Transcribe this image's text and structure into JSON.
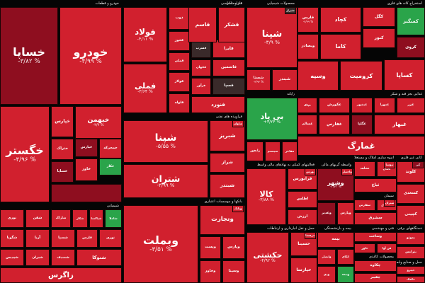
{
  "chart_data": {
    "type": "treemap",
    "title": "",
    "colors": {
      "dark_red": "#8e0e1f",
      "red": "#d1202e",
      "bright_red": "#e0232f",
      "green": "#2aa44a",
      "dark_green": "#1f7a3a",
      "dark": "#3a2a2a",
      "grey": "#505050"
    },
    "sectors": [
      {
        "name": "خودرو و قطعات",
        "tiles": [
          {
            "symbol": "خساپا",
            "change": "-۳/۸۲ %",
            "color": "dark_red"
          },
          {
            "symbol": "خودرو",
            "change": "-۴/۹۹ %",
            "color": "red"
          },
          {
            "symbol": "خگستر",
            "change": "-۴/۹۶ %",
            "color": "red"
          },
          {
            "symbol": "خبهمن",
            "change": "-۴/۹ %",
            "color": "red"
          },
          {
            "symbol": "خپارس",
            "change": "",
            "color": "red"
          },
          {
            "symbol": "خپارس",
            "change": "",
            "color": "dark_red"
          },
          {
            "symbol": "خمحرکه",
            "change": "",
            "color": "red"
          },
          {
            "symbol": "ختراک",
            "change": "",
            "color": "red"
          },
          {
            "symbol": "خکار",
            "change": "",
            "color": "green"
          },
          {
            "symbol": "خساپا",
            "change": "",
            "color": "dark_red"
          },
          {
            "symbol": "خاور",
            "change": "",
            "color": "red"
          },
          {
            "symbol": "",
            "change": "",
            "color": "dark_red"
          }
        ]
      },
      {
        "name": "فلزات اساسی",
        "tiles": [
          {
            "symbol": "فولاد",
            "change": "-۴/۱۱ %",
            "color": "red"
          },
          {
            "symbol": "فملی",
            "change": "-۳/۶۴ %",
            "color": "red"
          },
          {
            "symbol": "ذوب",
            "change": "",
            "color": "red"
          },
          {
            "symbol": "فخوز",
            "change": "",
            "color": "red"
          },
          {
            "symbol": "فملی",
            "change": "",
            "color": "red"
          },
          {
            "symbol": "فولاژ",
            "change": "",
            "color": "red"
          },
          {
            "symbol": "فسرب",
            "change": "",
            "color": "dark"
          },
          {
            "symbol": "فایرا",
            "change": "",
            "color": "red"
          },
          {
            "symbol": "فلوله",
            "change": "",
            "color": "red"
          },
          {
            "symbol": "فجهان",
            "change": "",
            "color": "red"
          },
          {
            "symbol": "فاسمین",
            "change": "",
            "color": "red"
          },
          {
            "symbol": "فرآور",
            "change": "",
            "color": "red"
          },
          {
            "symbol": "فسپا",
            "change": "",
            "color": "dark"
          },
          {
            "symbol": "فنورد",
            "change": "",
            "color": "red"
          }
        ]
      },
      {
        "name": "قند و شکر",
        "tiles": [
          {
            "symbol": "قاسم",
            "change": "",
            "color": "red"
          },
          {
            "symbol": "قشکر",
            "change": "",
            "color": "red"
          }
        ]
      },
      {
        "name": "محصولات شیمیایی",
        "tiles": [
          {
            "symbol": "شپنا",
            "change": "-۳/۹ %",
            "color": "red"
          },
          {
            "symbol": "شستا",
            "change": "-۴/۹۴ %",
            "color": "red"
          },
          {
            "symbol": "شبندر",
            "change": "",
            "color": "red"
          },
          {
            "symbol": "شپدیس",
            "change": "",
            "color": "red"
          },
          {
            "symbol": "شفن",
            "change": "",
            "color": "red"
          },
          {
            "symbol": "شخارک",
            "change": "",
            "color": "red"
          },
          {
            "symbol": "شاراک",
            "change": "",
            "color": "red"
          },
          {
            "symbol": "شتران",
            "change": "",
            "color": "red"
          },
          {
            "symbol": "شغدیر",
            "change": "",
            "color": "red"
          },
          {
            "symbol": "شیراز",
            "change": "",
            "color": "dark"
          }
        ]
      },
      {
        "name": "استخراج کانه های فلزی",
        "tiles": [
          {
            "symbol": "فارس",
            "change": "-۲/۹۹ %",
            "color": "red"
          },
          {
            "symbol": "وبصادر",
            "change": "",
            "color": "red"
          },
          {
            "symbol": "کچاد",
            "change": "",
            "color": "red"
          },
          {
            "symbol": "کگل",
            "change": "",
            "color": "red"
          },
          {
            "symbol": "کنور",
            "change": "",
            "color": "red"
          },
          {
            "symbol": "کاما",
            "change": "",
            "color": "red"
          },
          {
            "symbol": "کمنگنز",
            "change": "",
            "color": "green"
          },
          {
            "symbol": "کروی",
            "change": "",
            "color": "dark_red"
          },
          {
            "symbol": "وسپه",
            "change": "",
            "color": "red"
          },
          {
            "symbol": "کرومیت",
            "change": "",
            "color": "red"
          },
          {
            "symbol": "کساپا",
            "change": "",
            "color": "red"
          }
        ]
      },
      {
        "name": "فراورده های نفتی",
        "tiles": [
          {
            "symbol": "شپنا",
            "change": "-۵/۵۵ %",
            "color": "red"
          },
          {
            "symbol": "شتران",
            "change": "-۳/۹۹ %",
            "color": "red"
          },
          {
            "symbol": "شبریز",
            "change": "",
            "color": "red"
          },
          {
            "symbol": "شراز",
            "change": "",
            "color": "red"
          },
          {
            "symbol": "شبندر",
            "change": "",
            "color": "red"
          },
          {
            "symbol": "شاوان",
            "change": "",
            "color": "red"
          }
        ]
      },
      {
        "name": "رایانه",
        "tiles": [
          {
            "symbol": "بی پاد",
            "change": "+۴/۲۴ %",
            "color": "green"
          },
          {
            "symbol": "رانفور",
            "change": "",
            "color": "red"
          },
          {
            "symbol": "سیستم",
            "change": "",
            "color": "red"
          },
          {
            "symbol": "مفاخر",
            "change": "",
            "color": "red"
          }
        ]
      },
      {
        "name": "غذایی بجز قند و شکر",
        "tiles": [
          {
            "symbol": "غپاک",
            "change": "",
            "color": "red"
          },
          {
            "symbol": "غکورش",
            "change": "",
            "color": "red"
          },
          {
            "symbol": "غبشهر",
            "change": "",
            "color": "red"
          },
          {
            "symbol": "غمهرا",
            "change": "",
            "color": "red"
          },
          {
            "symbol": "غزر",
            "change": "",
            "color": "red"
          },
          {
            "symbol": "غسالم",
            "change": "",
            "color": "red"
          },
          {
            "symbol": "غفارس",
            "change": "",
            "color": "red"
          },
          {
            "symbol": "غگلپا",
            "change": "",
            "color": "dark_red"
          },
          {
            "symbol": "غبهار",
            "change": "",
            "color": "red"
          },
          {
            "symbol": "غمارگ",
            "change": "",
            "color": "red"
          }
        ]
      },
      {
        "name": "بانکها و موسسات اعتباری",
        "tiles": [
          {
            "symbol": "وبملت",
            "change": "-۳/۵۱ %",
            "color": "red"
          },
          {
            "symbol": "وبصادر",
            "change": "-۳/۳ %",
            "color": "red"
          },
          {
            "symbol": "وتجارت",
            "change": "",
            "color": "red"
          },
          {
            "symbol": "وپست",
            "change": "",
            "color": "red"
          },
          {
            "symbol": "وپارس",
            "change": "",
            "color": "red"
          },
          {
            "symbol": "وخاور",
            "change": "",
            "color": "red"
          },
          {
            "symbol": "وسینا",
            "change": "",
            "color": "red"
          },
          {
            "symbol": "دی",
            "change": "",
            "color": "red"
          },
          {
            "symbol": "وبانک",
            "change": "",
            "color": "red"
          }
        ]
      },
      {
        "name": "فعالیتهای کمکی به نهادهای مالی واسط",
        "tiles": [
          {
            "symbol": "کالا",
            "change": "-۳/۸۸ %",
            "color": "red"
          },
          {
            "symbol": "فرابورس",
            "change": "",
            "color": "red"
          },
          {
            "symbol": "اطلس",
            "change": "",
            "color": "red"
          },
          {
            "symbol": "ارزش",
            "change": "",
            "color": "red"
          },
          {
            "symbol": "بورس",
            "change": "",
            "color": "red"
          }
        ]
      },
      {
        "name": "واسطه گریهای مالی",
        "tiles": [
          {
            "symbol": "وشهر",
            "change": "-۳/۷۳ %",
            "color": "dark_red"
          },
          {
            "symbol": "وغدیر",
            "change": "",
            "color": "dark_red"
          },
          {
            "symbol": "وپارس",
            "change": "",
            "color": "red"
          },
          {
            "symbol": "وصندوق",
            "change": "",
            "color": "red"
          },
          {
            "symbol": "واعتبار",
            "change": "",
            "color": "red"
          }
        ]
      },
      {
        "name": "انبوه سازی املاک و مستغلات",
        "tiles": [
          {
            "symbol": "ثشاهد",
            "change": "",
            "color": "red"
          },
          {
            "symbol": "ثامان",
            "change": "",
            "color": "red"
          },
          {
            "symbol": "ثباغ",
            "change": "",
            "color": "red"
          },
          {
            "symbol": "ثاخت",
            "change": "",
            "color": "red"
          },
          {
            "symbol": "وآتی",
            "change": "",
            "color": "red"
          },
          {
            "symbol": "ثنوسا",
            "change": "",
            "color": "red"
          }
        ]
      },
      {
        "name": "کانی غیر فلزی",
        "tiles": [
          {
            "symbol": "کلوند",
            "change": "",
            "color": "red"
          },
          {
            "symbol": "کسعدی",
            "change": "",
            "color": "red"
          },
          {
            "symbol": "کچینی",
            "change": "",
            "color": "red"
          },
          {
            "symbol": "کفرا",
            "change": "",
            "color": "red"
          },
          {
            "symbol": "کی",
            "change": "",
            "color": "dark_red"
          }
        ]
      },
      {
        "name": "سیمان",
        "tiles": [
          {
            "symbol": "سفارس",
            "change": "",
            "color": "red"
          },
          {
            "symbol": "سشمال",
            "change": "",
            "color": "red"
          },
          {
            "symbol": "سشرق",
            "change": "",
            "color": "red"
          },
          {
            "symbol": "ستران",
            "change": "",
            "color": "red"
          }
        ]
      },
      {
        "name": "شیمیایی",
        "tiles": [
          {
            "symbol": "نوری",
            "change": "",
            "color": "red"
          },
          {
            "symbol": "شفن",
            "change": "",
            "color": "red"
          },
          {
            "symbol": "شاراک",
            "change": "",
            "color": "red"
          },
          {
            "symbol": "شکلر",
            "change": "",
            "color": "red"
          },
          {
            "symbol": "شپاکسا",
            "change": "",
            "color": "red"
          },
          {
            "symbol": "شاملا",
            "change": "",
            "color": "green"
          },
          {
            "symbol": "شگویا",
            "change": "",
            "color": "red"
          },
          {
            "symbol": "آریا",
            "change": "",
            "color": "red"
          },
          {
            "symbol": "شسپا",
            "change": "",
            "color": "red"
          },
          {
            "symbol": "فارس",
            "change": "",
            "color": "red"
          },
          {
            "symbol": "نوری",
            "change": "",
            "color": "red"
          },
          {
            "symbol": "شپدیس",
            "change": "",
            "color": "red"
          },
          {
            "symbol": "شیران",
            "change": "",
            "color": "red"
          },
          {
            "symbol": "شصدف",
            "change": "",
            "color": "red"
          },
          {
            "symbol": "شتوکا",
            "change": "",
            "color": "red"
          },
          {
            "symbol": "زاگرس",
            "change": "",
            "color": "red"
          }
        ]
      },
      {
        "name": "حمل و نقل انبارداری و ارتباطات",
        "tiles": [
          {
            "symbol": "حکشتی",
            "change": "-۴/۹۲ %",
            "color": "red"
          },
          {
            "symbol": "حسینا",
            "change": "",
            "color": "red"
          },
          {
            "symbol": "حپارسا",
            "change": "",
            "color": "red"
          },
          {
            "symbol": "حفارس",
            "change": "",
            "color": "red"
          },
          {
            "symbol": "حتوکا",
            "change": "",
            "color": "red"
          },
          {
            "symbol": "حریل",
            "change": "",
            "color": "red"
          },
          {
            "symbol": "حآسا",
            "change": "",
            "color": "red"
          },
          {
            "symbol": "حرهشا",
            "change": "",
            "color": "red"
          }
        ]
      },
      {
        "name": "بیمه و بازنشستگی",
        "tiles": [
          {
            "symbol": "بیمه",
            "change": "",
            "color": "red"
          },
          {
            "symbol": "وانصار",
            "change": "",
            "color": "red"
          },
          {
            "symbol": "اتکای",
            "change": "",
            "color": "red"
          },
          {
            "symbol": "ودی",
            "change": "",
            "color": "red"
          },
          {
            "symbol": "وبیمه",
            "change": "",
            "color": "green"
          }
        ]
      },
      {
        "name": "فنی و مهندسی",
        "tiles": [
          {
            "symbol": "وساخت",
            "change": "",
            "color": "red"
          },
          {
            "symbol": "خاور",
            "change": "",
            "color": "red"
          },
          {
            "symbol": "فن آوا",
            "change": "",
            "color": "red"
          }
        ]
      },
      {
        "name": "محصولات کاغذی",
        "tiles": [
          {
            "symbol": "چکاوه",
            "change": "",
            "color": "red"
          },
          {
            "symbol": "چفیبر",
            "change": "",
            "color": "red"
          }
        ]
      },
      {
        "name": "دستگاههای برقی",
        "tiles": [
          {
            "symbol": "بموتو",
            "change": "",
            "color": "red"
          },
          {
            "symbol": "بترانس",
            "change": "",
            "color": "red"
          }
        ]
      },
      {
        "name": "حمل و صنایع وابسته",
        "tiles": [
          {
            "symbol": "حپترو",
            "change": "",
            "color": "red"
          },
          {
            "symbol": "حکمک",
            "change": "",
            "color": "red"
          }
        ]
      }
    ]
  }
}
